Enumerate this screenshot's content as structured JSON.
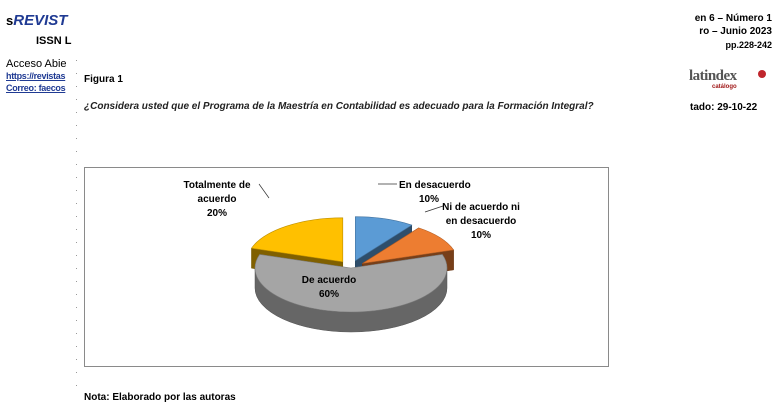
{
  "header": {
    "journal_prefix": "s",
    "journal_name": "REVIST",
    "issn": "ISSN L",
    "access": "Acceso Abie",
    "link1": "https://revistas",
    "link2": "Correo: faecos",
    "issue_line1": "en 6 – Número 1",
    "issue_line2": "ro – Junio   2023",
    "pages": "pp.228-242",
    "logo_word": "latindex",
    "logo_sub": "catálogo",
    "dated": "tado: 29-10-22"
  },
  "figure": {
    "label": "Figura 1",
    "question": "¿Considera usted que el Programa de la Maestría  en Contabilidad es adecuado para la Formación Integral?",
    "note": "Nota: Elaborado por las autoras"
  },
  "colors": {
    "accent": "#1f3a93",
    "en_desacuerdo": "#5b9bd5",
    "ni_de_acuerdo": "#ed7d31",
    "de_acuerdo": "#a5a5a5",
    "totalmente": "#ffc000"
  },
  "chart_data": {
    "type": "pie",
    "style": "3d-exploded",
    "title": "",
    "categories": [
      "En desacuerdo",
      "Ni de acuerdo ni en desacuerdo",
      "De acuerdo",
      "Totalmente de acuerdo"
    ],
    "values": [
      10,
      10,
      60,
      20
    ],
    "unit": "%",
    "labels": [
      {
        "lines": [
          "En desacuerdo"
        ],
        "pct": "10%"
      },
      {
        "lines": [
          "Ni de acuerdo ni",
          "en desacuerdo"
        ],
        "pct": "10%"
      },
      {
        "lines": [
          "De acuerdo"
        ],
        "pct": "60%"
      },
      {
        "lines": [
          "Totalmente de",
          "acuerdo"
        ],
        "pct": "20%"
      }
    ],
    "legend": "none"
  }
}
